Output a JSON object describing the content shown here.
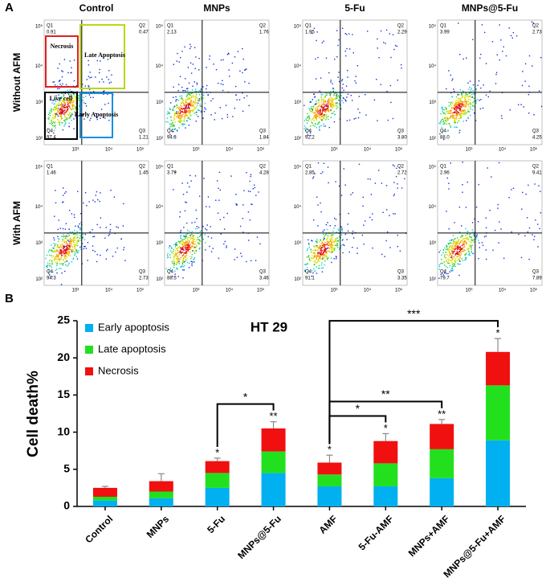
{
  "panel_a": {
    "label": "A",
    "columns": [
      "Control",
      "MNPs",
      "5-Fu",
      "MNPs@5-Fu"
    ],
    "rows": [
      "Without AFM",
      "With AFM"
    ],
    "quadrant_names": [
      "Q1",
      "Q2",
      "Q3",
      "Q4"
    ],
    "x_ticks": [
      "10³",
      "10⁴",
      "10⁵"
    ],
    "y_ticks": [
      "10⁵",
      "10⁴",
      "10³",
      "10²"
    ],
    "gates": [
      "Necrosis",
      "Late Apoptosis",
      "Live cell",
      "Early Apoptosis"
    ],
    "plots": [
      [
        [
          "0.91",
          "0.47",
          "1.21",
          "97.4"
        ],
        [
          "2.13",
          "1.76",
          "1.84",
          "94.3"
        ],
        [
          "1.95",
          "2.29",
          "3.80",
          "92.2"
        ],
        [
          "3.99",
          "2.73",
          "4.25",
          "88.0"
        ]
      ],
      [
        [
          "1.46",
          "1.45",
          "2.73",
          "94.3"
        ],
        [
          "3.79",
          "4.28",
          "3.46",
          "88.5"
        ],
        [
          "2.85",
          "2.72",
          "3.35",
          "91.1"
        ],
        [
          "2.96",
          "9.41",
          "7.89",
          "79.7"
        ]
      ]
    ]
  },
  "chart_data": {
    "type": "bar",
    "stacked": true,
    "label": "B",
    "title": "HT 29",
    "y_label": "Cell death%",
    "categories": [
      "Control",
      "MNPs",
      "5-Fu",
      "MNPs@5-Fu",
      "AMF",
      "5-Fu-AMF",
      "MNPs+AMF",
      "MNPs@5-Fu+AMF"
    ],
    "series": [
      {
        "name": "Early apoptosis",
        "color": "#00b0f0",
        "values": [
          0.8,
          1.1,
          2.5,
          4.5,
          2.7,
          2.7,
          3.8,
          8.9
        ]
      },
      {
        "name": "Late apoptosis",
        "color": "#22e01e",
        "values": [
          0.5,
          0.9,
          2.0,
          2.9,
          1.6,
          3.1,
          3.9,
          7.4
        ]
      },
      {
        "name": "Necrosis",
        "color": "#f01010",
        "values": [
          1.2,
          1.4,
          1.6,
          3.1,
          1.6,
          3.0,
          3.4,
          4.5
        ],
        "errors": [
          0.2,
          1.0,
          0.4,
          0.9,
          1.0,
          1.0,
          0.6,
          1.8
        ]
      }
    ],
    "bar_marks": [
      null,
      null,
      "*",
      "**",
      "*",
      "*",
      "**",
      "*"
    ],
    "comparisons": [
      {
        "between": [
          "5-Fu",
          "MNPs@5-Fu"
        ],
        "label": "*"
      },
      {
        "between": [
          "AMF",
          "5-Fu-AMF"
        ],
        "label": "*"
      },
      {
        "between": [
          "AMF",
          "MNPs+AMF"
        ],
        "label": "**"
      },
      {
        "between": [
          "AMF",
          "MNPs@5-Fu+AMF"
        ],
        "label": "***"
      }
    ],
    "ylim": [
      0,
      25
    ],
    "yticks": [
      0,
      5,
      10,
      15,
      20,
      25
    ],
    "legend": "top-left",
    "grid": false
  }
}
